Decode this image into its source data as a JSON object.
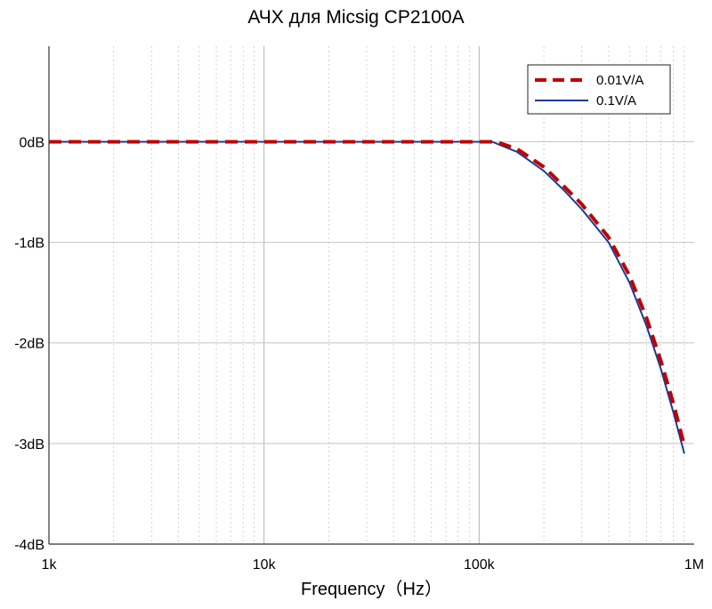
{
  "chart_data": {
    "type": "line",
    "title": "АЧХ для Micsig CP2100A",
    "xlabel": "Frequency（Hz）",
    "ylabel": "",
    "x_scale": "log",
    "xlim": [
      1000,
      1000000
    ],
    "ylim": [
      -4,
      0.95
    ],
    "grid": true,
    "legend_position": "top-right",
    "x_ticks": [
      {
        "value": 1000,
        "label": "1k"
      },
      {
        "value": 10000,
        "label": "10k"
      },
      {
        "value": 100000,
        "label": "100k"
      },
      {
        "value": 1000000,
        "label": "1M"
      }
    ],
    "y_ticks": [
      {
        "value": 0,
        "label": "0dB"
      },
      {
        "value": -1,
        "label": "-1dB"
      },
      {
        "value": -2,
        "label": "-2dB"
      },
      {
        "value": -3,
        "label": "-3dB"
      },
      {
        "value": -4,
        "label": "-4dB"
      }
    ],
    "series": [
      {
        "name": "0.01V/A",
        "color": "#c00000",
        "style": "dashed",
        "x": [
          1000,
          10000,
          100000,
          120000,
          150000,
          200000,
          250000,
          300000,
          400000,
          500000,
          600000,
          700000,
          800000,
          900000
        ],
        "y": [
          0,
          0,
          0,
          0,
          -0.07,
          -0.25,
          -0.45,
          -0.62,
          -0.95,
          -1.33,
          -1.75,
          -2.18,
          -2.6,
          -3.02
        ]
      },
      {
        "name": "0.1V/A",
        "color": "#1f3a93",
        "style": "solid",
        "x": [
          1000,
          10000,
          100000,
          115000,
          150000,
          200000,
          250000,
          300000,
          400000,
          500000,
          600000,
          700000,
          800000,
          900000
        ],
        "y": [
          0,
          0,
          0,
          0,
          -0.1,
          -0.29,
          -0.49,
          -0.67,
          -1.0,
          -1.4,
          -1.83,
          -2.26,
          -2.69,
          -3.1
        ]
      }
    ]
  }
}
